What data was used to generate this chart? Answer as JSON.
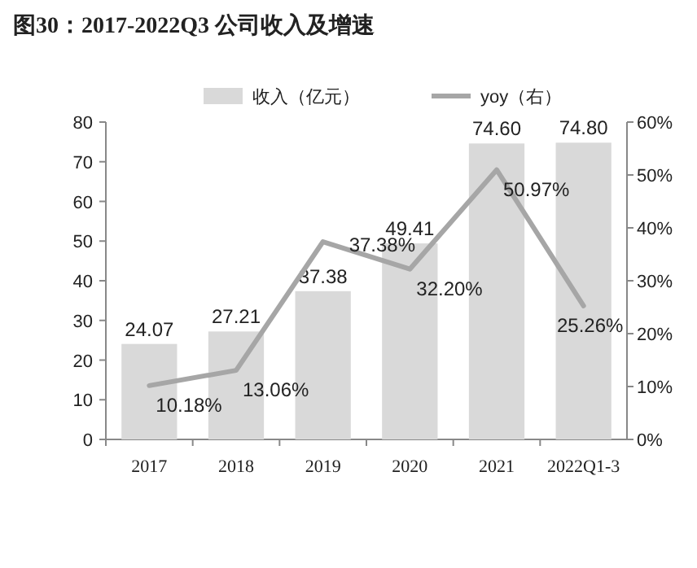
{
  "chart_data": {
    "type": "bar",
    "title": "图30：2017-2022Q3 公司收入及增速",
    "categories": [
      "2017",
      "2018",
      "2019",
      "2020",
      "2021",
      "2022Q1-3"
    ],
    "series": [
      {
        "name": "收入（亿元）",
        "color": "#d9d9d9",
        "values": [
          24.07,
          27.21,
          37.38,
          49.41,
          74.6,
          74.8
        ],
        "value_labels": [
          "24.07",
          "27.21",
          "37.38",
          "49.41",
          "74.60",
          "74.80"
        ]
      },
      {
        "name": "yoy（右）",
        "type": "line",
        "axis": "y2",
        "color": "#a6a6a6",
        "values": [
          10.18,
          13.06,
          37.38,
          32.2,
          50.97,
          25.26
        ],
        "value_labels": [
          "10.18%",
          "13.06%",
          "37.38%",
          "32.20%",
          "50.97%",
          "25.26%"
        ]
      }
    ],
    "ylim": [
      0,
      80
    ],
    "yticks": [
      0,
      10,
      20,
      30,
      40,
      50,
      60,
      70,
      80
    ],
    "y2lim": [
      0,
      60
    ],
    "y2ticks": [
      {
        "value": 0,
        "label": "0%"
      },
      {
        "value": 10,
        "label": "10%"
      },
      {
        "value": 20,
        "label": "20%"
      },
      {
        "value": 30,
        "label": "30%"
      },
      {
        "value": 40,
        "label": "40%"
      },
      {
        "value": 50,
        "label": "50%"
      },
      {
        "value": 60,
        "label": "60%"
      }
    ],
    "legend": "top",
    "grid": false
  }
}
